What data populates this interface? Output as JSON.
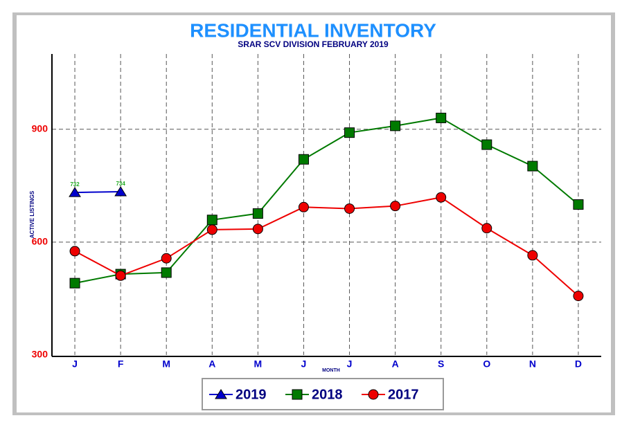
{
  "chart_data": {
    "type": "line",
    "title": "RESIDENTIAL  INVENTORY",
    "subtitle": "SRAR SCV DIVISION FEBRUARY 2019",
    "y_label": "ACTIVE LISTINGS",
    "x_label": "MONTH",
    "categories": [
      "J",
      "F",
      "M",
      "A",
      "M",
      "J",
      "J",
      "A",
      "S",
      "O",
      "N",
      "D"
    ],
    "series": [
      {
        "name": "2019",
        "color": "#0000cc",
        "marker": "triangle",
        "show_labels": true,
        "values": [
          732,
          734,
          null,
          null,
          null,
          null,
          null,
          null,
          null,
          null,
          null,
          null
        ]
      },
      {
        "name": "2018",
        "color": "#007a00",
        "marker": "square",
        "values": [
          491,
          515,
          519,
          659,
          676,
          820,
          891,
          909,
          930,
          859,
          802,
          700
        ]
      },
      {
        "name": "2017",
        "color": "#ee0000",
        "marker": "circle",
        "values": [
          576,
          511,
          557,
          633,
          635,
          693,
          689,
          696,
          719,
          637,
          565,
          457
        ]
      }
    ],
    "ylim": [
      300,
      1100
    ],
    "yticks": [
      300,
      600,
      900
    ],
    "grid": true
  }
}
